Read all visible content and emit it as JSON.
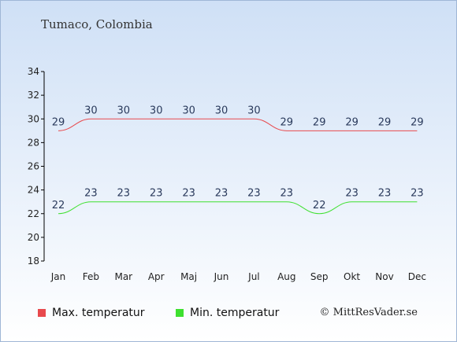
{
  "header": {
    "title": "Tumaco, Colombia"
  },
  "legend": {
    "max_label": "Max. temperatur",
    "min_label": "Min. temperatur"
  },
  "footer": {
    "copyright": "© MittResVader.se"
  },
  "colors": {
    "max": "#e8494d",
    "min": "#3ee02f"
  },
  "chart_data": {
    "type": "line",
    "title": "Tumaco, Colombia",
    "xlabel": "",
    "ylabel": "",
    "categories": [
      "Jan",
      "Feb",
      "Mar",
      "Apr",
      "Maj",
      "Jun",
      "Jul",
      "Aug",
      "Sep",
      "Okt",
      "Nov",
      "Dec"
    ],
    "ylim": [
      18,
      34
    ],
    "yticks": [
      18,
      20,
      22,
      24,
      26,
      28,
      30,
      32,
      34
    ],
    "grid": false,
    "legend_position": "bottom",
    "series": [
      {
        "name": "Max. temperatur",
        "color": "#e8494d",
        "values": [
          29,
          30,
          30,
          30,
          30,
          30,
          30,
          29,
          29,
          29,
          29,
          29
        ]
      },
      {
        "name": "Min. temperatur",
        "color": "#3ee02f",
        "values": [
          22,
          23,
          23,
          23,
          23,
          23,
          23,
          23,
          22,
          23,
          23,
          23
        ]
      }
    ]
  }
}
